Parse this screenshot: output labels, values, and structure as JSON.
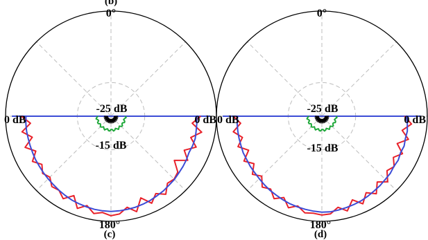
{
  "top_label": "(b)",
  "colors": {
    "red": "#e8212a",
    "blue": "#3b4bd6",
    "green": "#1fa83a",
    "black": "#000000",
    "grid": "#bdbdbd"
  },
  "chart_data": [
    {
      "type": "polar",
      "panel_label": "(c)",
      "angle_labels": {
        "top": "0°",
        "bottom": "180°"
      },
      "radial_labels": {
        "outer_left": "0 dB",
        "outer_right": "0 dB",
        "inner": "-25 dB",
        "mid": "-15 dB"
      },
      "radial_range_db": [
        -30,
        0
      ],
      "grid": true,
      "series": [
        {
          "color": "red",
          "points": [
            [
              90,
              -4.5
            ],
            [
              95,
              -6.8
            ],
            [
              100,
              -3.8
            ],
            [
              105,
              -6.5
            ],
            [
              110,
              -4.2
            ],
            [
              115,
              -7
            ],
            [
              120,
              -4.8
            ],
            [
              125,
              -8
            ],
            [
              130,
              -5.2
            ],
            [
              135,
              -4.6
            ],
            [
              140,
              -5
            ],
            [
              145,
              -2.8
            ],
            [
              150,
              -4.5
            ],
            [
              155,
              -2.6
            ],
            [
              160,
              -5.2
            ],
            [
              165,
              -1.8
            ],
            [
              170,
              -3.6
            ],
            [
              175,
              -2
            ],
            [
              180,
              -1.6
            ],
            [
              185,
              -2.4
            ],
            [
              190,
              -1.8
            ],
            [
              195,
              -3.6
            ],
            [
              200,
              -2
            ],
            [
              205,
              -5
            ],
            [
              210,
              -2.8
            ],
            [
              215,
              -4.2
            ],
            [
              220,
              -3.8
            ],
            [
              225,
              -5.4
            ],
            [
              230,
              -4.6
            ],
            [
              235,
              -6
            ],
            [
              240,
              -4.2
            ],
            [
              245,
              -6.4
            ],
            [
              250,
              -4
            ],
            [
              255,
              -6.8
            ],
            [
              260,
              -4.3
            ],
            [
              265,
              -7
            ],
            [
              270,
              -4.5
            ]
          ]
        },
        {
          "color": "blue",
          "points": [
            [
              90,
              -5.6
            ],
            [
              95,
              -5.5
            ],
            [
              100,
              -5.4
            ],
            [
              105,
              -5.2
            ],
            [
              110,
              -5.3
            ],
            [
              115,
              -5.5
            ],
            [
              120,
              -5.2
            ],
            [
              125,
              -5
            ],
            [
              130,
              -4.8
            ],
            [
              135,
              -4.5
            ],
            [
              140,
              -4.3
            ],
            [
              145,
              -4
            ],
            [
              150,
              -3.8
            ],
            [
              155,
              -3.5
            ],
            [
              160,
              -3.3
            ],
            [
              165,
              -3.1
            ],
            [
              170,
              -3
            ],
            [
              175,
              -2.9
            ],
            [
              180,
              -2.8
            ],
            [
              185,
              -2.9
            ],
            [
              190,
              -3
            ],
            [
              195,
              -3.2
            ],
            [
              200,
              -3.4
            ],
            [
              205,
              -3.6
            ],
            [
              210,
              -3.9
            ],
            [
              215,
              -4.2
            ],
            [
              220,
              -4.5
            ],
            [
              225,
              -4.7
            ],
            [
              230,
              -4.9
            ],
            [
              235,
              -5.1
            ],
            [
              240,
              -5.2
            ],
            [
              245,
              -5.4
            ],
            [
              250,
              -5.5
            ],
            [
              255,
              -5.6
            ],
            [
              260,
              -5.6
            ],
            [
              265,
              -5.7
            ],
            [
              270,
              -5.8
            ]
          ]
        },
        {
          "color": "green",
          "level_db": -26
        },
        {
          "color": "black",
          "level_db": -28
        }
      ]
    },
    {
      "type": "polar",
      "panel_label": "(d)",
      "angle_labels": {
        "top": "0°",
        "bottom": "180°"
      },
      "radial_labels": {
        "outer_left": "0 dB",
        "outer_right": "0 dB",
        "inner": "-25 dB",
        "mid": "-15 dB"
      },
      "radial_range_db": [
        -30,
        0
      ],
      "grid": true,
      "series": [
        {
          "color": "red",
          "points": [
            [
              90,
              -6.5
            ],
            [
              95,
              -4.4
            ],
            [
              100,
              -6.8
            ],
            [
              105,
              -4.5
            ],
            [
              110,
              -7.2
            ],
            [
              115,
              -4.7
            ],
            [
              120,
              -6.5
            ],
            [
              125,
              -4.9
            ],
            [
              130,
              -5.8
            ],
            [
              135,
              -3.5
            ],
            [
              140,
              -5.5
            ],
            [
              145,
              -3
            ],
            [
              150,
              -4.8
            ],
            [
              155,
              -2.4
            ],
            [
              160,
              -4.6
            ],
            [
              165,
              -2
            ],
            [
              170,
              -3.6
            ],
            [
              175,
              -2
            ],
            [
              180,
              -1.8
            ],
            [
              185,
              -2.2
            ],
            [
              190,
              -2
            ],
            [
              195,
              -3.5
            ],
            [
              200,
              -2.2
            ],
            [
              205,
              -4.4
            ],
            [
              210,
              -2.8
            ],
            [
              215,
              -4.6
            ],
            [
              220,
              -3.6
            ],
            [
              225,
              -5.8
            ],
            [
              230,
              -4.2
            ],
            [
              235,
              -6.4
            ],
            [
              240,
              -4.4
            ],
            [
              245,
              -7
            ],
            [
              250,
              -4.6
            ],
            [
              255,
              -6.6
            ],
            [
              260,
              -4.4
            ],
            [
              265,
              -6.8
            ],
            [
              270,
              -4.8
            ]
          ]
        },
        {
          "color": "blue",
          "points": [
            [
              90,
              -5.9
            ],
            [
              95,
              -5.6
            ],
            [
              100,
              -5.3
            ],
            [
              105,
              -5.4
            ],
            [
              110,
              -5.1
            ],
            [
              115,
              -5.3
            ],
            [
              120,
              -4.9
            ],
            [
              125,
              -5
            ],
            [
              130,
              -4.6
            ],
            [
              135,
              -4.5
            ],
            [
              140,
              -4.2
            ],
            [
              145,
              -4
            ],
            [
              150,
              -3.7
            ],
            [
              155,
              -3.4
            ],
            [
              160,
              -3.2
            ],
            [
              165,
              -3
            ],
            [
              170,
              -2.8
            ],
            [
              175,
              -2.6
            ],
            [
              180,
              -2.6
            ],
            [
              185,
              -2.8
            ],
            [
              190,
              -3
            ],
            [
              195,
              -3.2
            ],
            [
              200,
              -3.4
            ],
            [
              205,
              -3.7
            ],
            [
              210,
              -4
            ],
            [
              215,
              -4.2
            ],
            [
              220,
              -4.5
            ],
            [
              225,
              -4.8
            ],
            [
              230,
              -5
            ],
            [
              235,
              -5.1
            ],
            [
              240,
              -5.3
            ],
            [
              245,
              -5.3
            ],
            [
              250,
              -5.5
            ],
            [
              255,
              -5.6
            ],
            [
              260,
              -5.7
            ],
            [
              265,
              -5.8
            ],
            [
              270,
              -6
            ]
          ]
        },
        {
          "color": "green",
          "level_db": -26
        },
        {
          "color": "black",
          "level_db": -28
        }
      ]
    }
  ]
}
